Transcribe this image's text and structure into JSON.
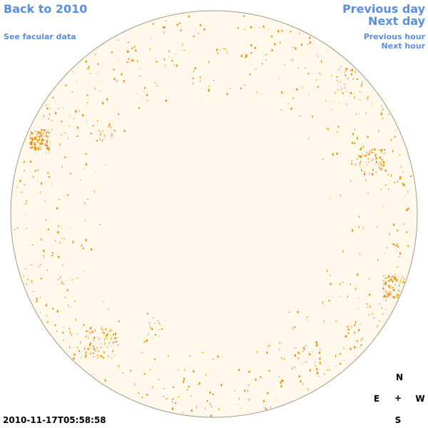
{
  "nav": {
    "back_label": "Back to 2010",
    "facular_label": "See facular data",
    "prev_day_label": "Previous day",
    "next_day_label": "Next day",
    "prev_hour_label": "Previous hour",
    "next_hour_label": "Next hour"
  },
  "timestamp": "2010-11-17T05:58:58",
  "compass": {
    "north": "N",
    "south": "S",
    "east": "E",
    "west": "W",
    "center": "+"
  },
  "colors": {
    "link": "#5b8ee0",
    "disk_fill": "#fff8eb",
    "disk_outline": "#a39a89",
    "facula": "#f08a00"
  }
}
